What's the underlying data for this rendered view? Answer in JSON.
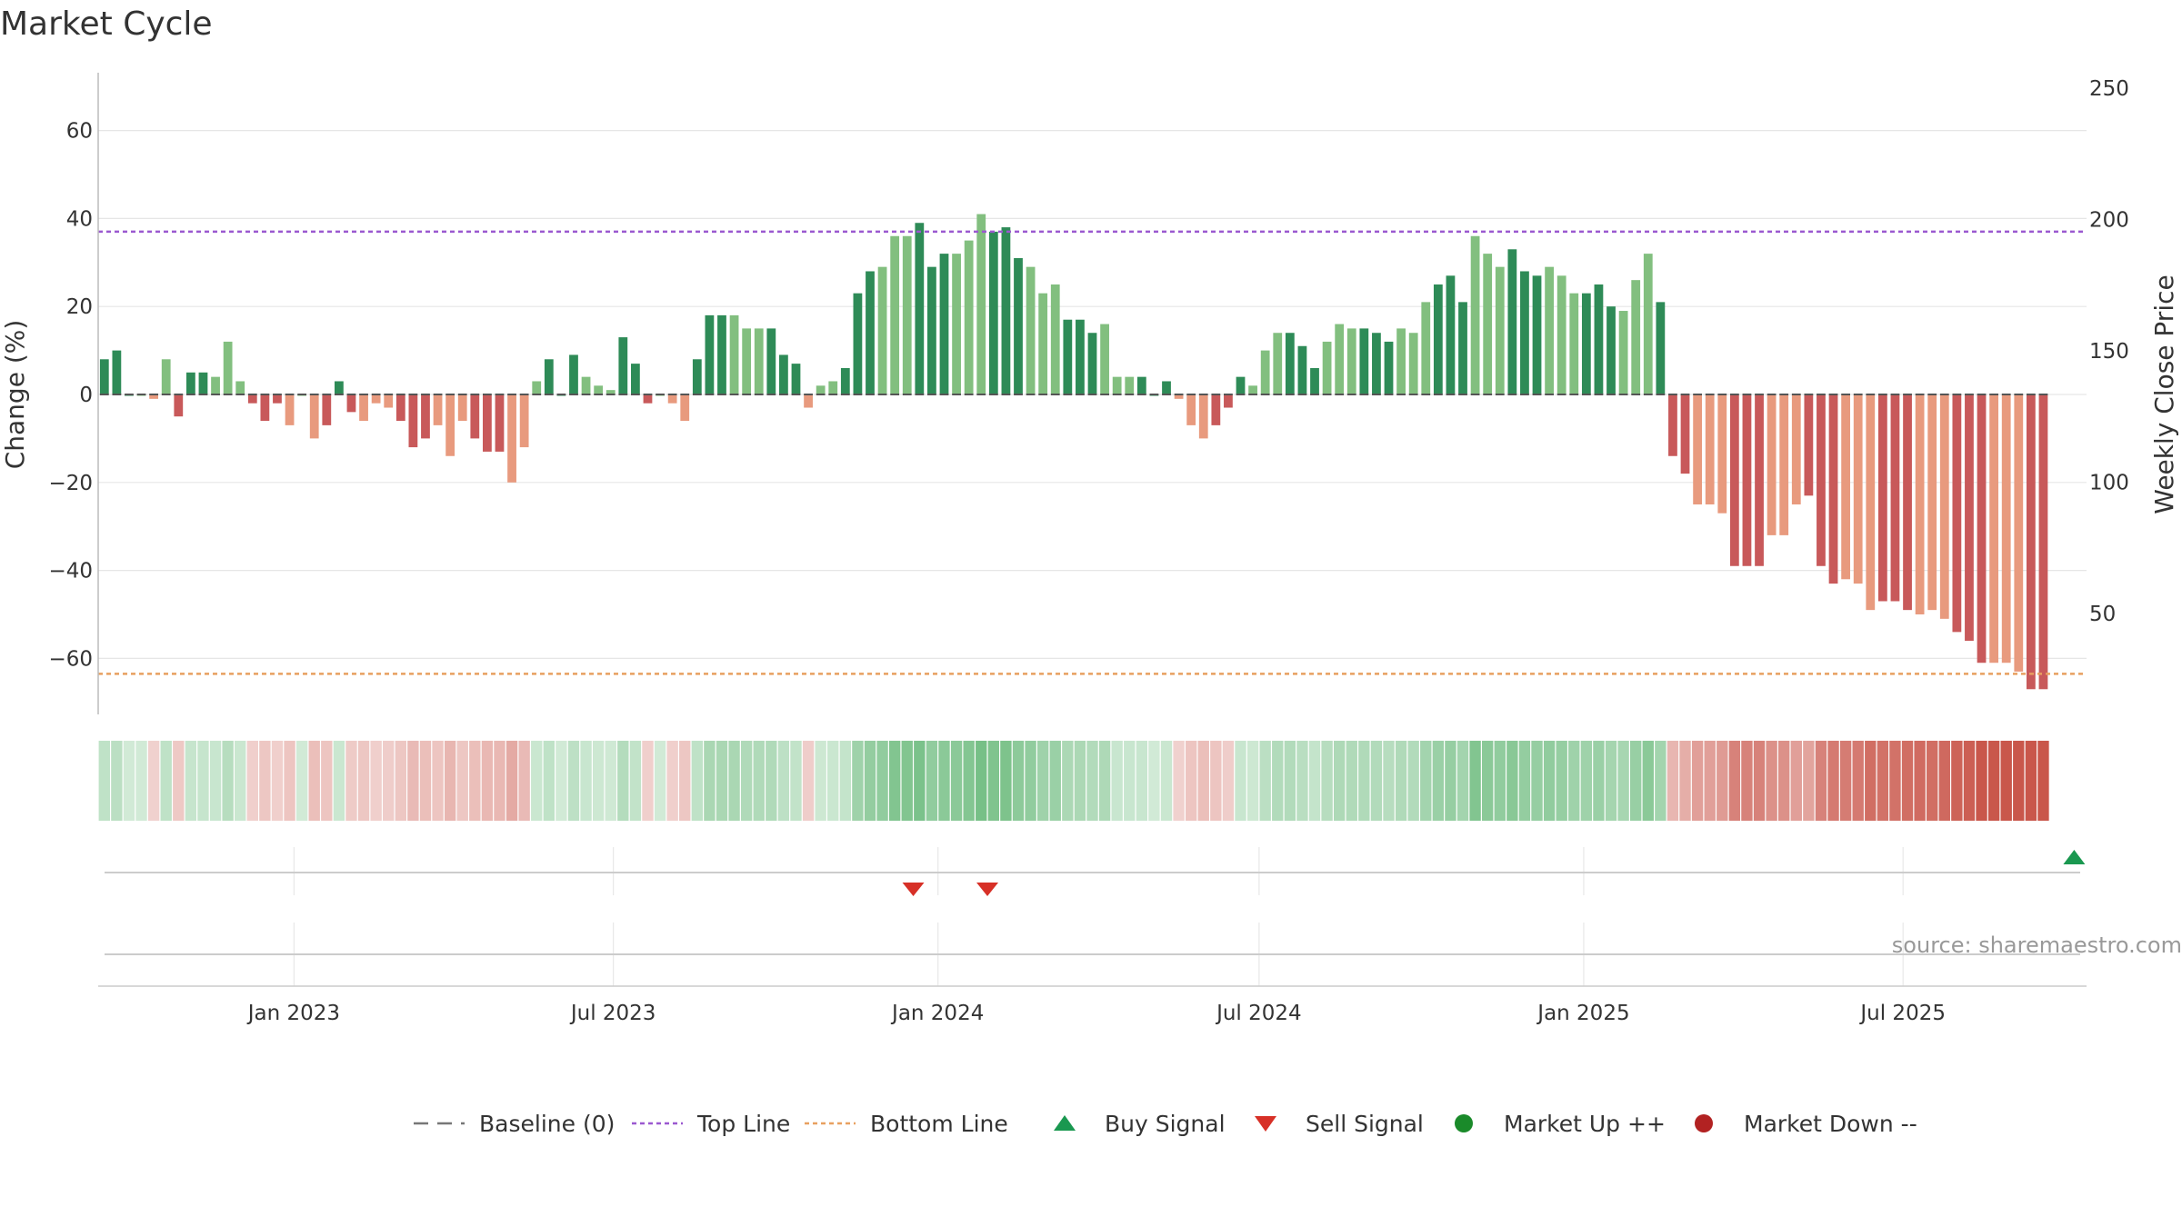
{
  "chart_data": {
    "type": "bar",
    "title": "Market Cycle",
    "ylabel": "Change (%)",
    "y2label": "Weekly Close Price",
    "source": "source: sharemaestro.com",
    "ylim": [
      -73,
      73
    ],
    "y2lim": [
      45,
      255
    ],
    "yticks": [
      60,
      40,
      20,
      0,
      -20,
      -40,
      -60
    ],
    "ytick_labels": [
      "60",
      "40",
      "20",
      "0",
      "−20",
      "−40",
      "−60"
    ],
    "y2ticks": [
      250,
      200,
      150,
      100,
      50
    ],
    "y2tick_labels": [
      "250",
      "200",
      "150",
      "100",
      "50"
    ],
    "top_line": 37,
    "bottom_line": -63.5,
    "baseline": 0,
    "x_start": "2022-09-12",
    "x_end": "2025-10-13",
    "x_ticks": [
      {
        "date": "2023-01-01",
        "label": "Jan 2023"
      },
      {
        "date": "2023-07-01",
        "label": "Jul 2023"
      },
      {
        "date": "2024-01-01",
        "label": "Jan 2024"
      },
      {
        "date": "2024-07-01",
        "label": "Jul 2024"
      },
      {
        "date": "2025-01-01",
        "label": "Jan 2025"
      },
      {
        "date": "2025-07-01",
        "label": "Jul 2025"
      }
    ],
    "first_week": "2022-09-12",
    "values": [
      8,
      10,
      0,
      0,
      -1,
      8,
      -5,
      5,
      5,
      4,
      12,
      3,
      -2,
      -6,
      -2,
      -7,
      0,
      -10,
      -7,
      3,
      -4,
      -6,
      -2,
      -3,
      -6,
      -12,
      -10,
      -7,
      -14,
      -6,
      -10,
      -13,
      -13,
      -20,
      -12,
      3,
      8,
      0,
      9,
      4,
      2,
      1,
      13,
      7,
      -2,
      0,
      -2,
      -6,
      8,
      18,
      18,
      18,
      15,
      15,
      15,
      9,
      7,
      -3,
      2,
      3,
      6,
      23,
      28,
      29,
      36,
      36,
      39,
      29,
      32,
      32,
      35,
      41,
      37,
      38,
      31,
      29,
      23,
      25,
      17,
      17,
      14,
      16,
      4,
      4,
      4,
      0,
      3,
      -1,
      -7,
      -10,
      -7,
      -3,
      4,
      2,
      10,
      14,
      14,
      11,
      6,
      12,
      16,
      15,
      15,
      14,
      12,
      15,
      14,
      21,
      25,
      27,
      21,
      36,
      32,
      29,
      33,
      28,
      27,
      29,
      27,
      23,
      23,
      25,
      20,
      19,
      26,
      32,
      21,
      -14,
      -18,
      -25,
      -25,
      -27,
      -39,
      -39,
      -39,
      -32,
      -32,
      -25,
      -23,
      -39,
      -43,
      -42,
      -43,
      -49,
      -47,
      -47,
      -49,
      -50,
      -49,
      -51,
      -54,
      -56,
      -61,
      -61,
      -61,
      -63,
      -67,
      -67
    ],
    "signals": [
      {
        "type": "sell",
        "date": "2023-12-18"
      },
      {
        "type": "sell",
        "date": "2024-01-29"
      },
      {
        "type": "buy",
        "date": "2025-10-06"
      }
    ],
    "legend": [
      {
        "label": "Baseline (0)",
        "symbol": "dashed-line",
        "color": "#777777"
      },
      {
        "label": "Top Line",
        "symbol": "dotted-line",
        "color": "#9b59d0"
      },
      {
        "label": "Bottom Line",
        "symbol": "dotted-line",
        "color": "#e8a060"
      },
      {
        "label": "Buy Signal",
        "symbol": "triangle-up",
        "color": "#1a9850"
      },
      {
        "label": "Sell Signal",
        "symbol": "triangle-down",
        "color": "#d73027"
      },
      {
        "label": "Market Up ++",
        "symbol": "circle",
        "color": "#1a8a2a"
      },
      {
        "label": "Market Down --",
        "symbol": "circle",
        "color": "#b22222"
      }
    ],
    "grid": true,
    "legend_position": "bottom-center"
  },
  "colors": {
    "pos_strong": "#2e8b57",
    "pos_light": "#82bf7f",
    "neg_strong": "#c8595a",
    "neg_light": "#e89a7e",
    "top_line": "#9b59d0",
    "bottom_line": "#e8a060",
    "grid": "#e6e6e6"
  }
}
